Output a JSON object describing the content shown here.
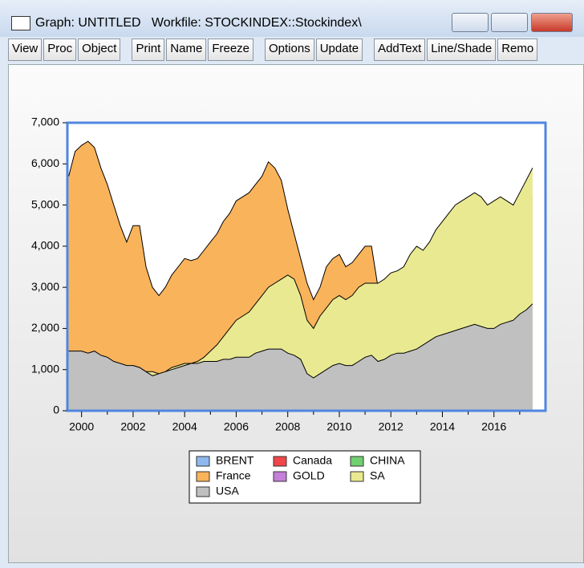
{
  "window": {
    "title": "Graph: UNTITLED   Workfile: STOCKINDEX::Stockindex\\"
  },
  "toolbar": [
    [
      "View",
      "Proc",
      "Object"
    ],
    [
      "Print",
      "Name",
      "Freeze"
    ],
    [
      "Options",
      "Update"
    ],
    [
      "AddText",
      "Line/Shade",
      "Remo"
    ]
  ],
  "chart_data": {
    "type": "area",
    "x": [
      1999.5,
      1999.75,
      2000,
      2000.25,
      2000.5,
      2000.75,
      2001,
      2001.25,
      2001.5,
      2001.75,
      2002,
      2002.25,
      2002.5,
      2002.75,
      2003,
      2003.25,
      2003.5,
      2003.75,
      2004,
      2004.25,
      2004.5,
      2004.75,
      2005,
      2005.25,
      2005.5,
      2005.75,
      2006,
      2006.25,
      2006.5,
      2006.75,
      2007,
      2007.25,
      2007.5,
      2007.75,
      2008,
      2008.25,
      2008.5,
      2008.75,
      2009,
      2009.25,
      2009.5,
      2009.75,
      2010,
      2010.25,
      2010.5,
      2010.75,
      2011,
      2011.25,
      2011.5,
      2011.75,
      2012,
      2012.25,
      2012.5,
      2012.75,
      2013,
      2013.25,
      2013.5,
      2013.75,
      2014,
      2014.25,
      2014.5,
      2014.75,
      2015,
      2015.25,
      2015.5,
      2015.75,
      2016,
      2016.25,
      2016.5,
      2016.75,
      2017,
      2017.25,
      2017.5
    ],
    "series": [
      {
        "name": "BRENT",
        "color": "#8fb8ef",
        "values": [
          null,
          null,
          null,
          null,
          null,
          null,
          null,
          null,
          null,
          null,
          null,
          null,
          null,
          null,
          null,
          null,
          null,
          null,
          null,
          null,
          null,
          null,
          null,
          null,
          null,
          null,
          null,
          null,
          null,
          null,
          null,
          null,
          null,
          null,
          null,
          null,
          null,
          null,
          null,
          null,
          null,
          null,
          null,
          null,
          null,
          null,
          null,
          null,
          null,
          null,
          null,
          null,
          null,
          null,
          null,
          null,
          null,
          null,
          null,
          null,
          null,
          null,
          null,
          null,
          null,
          null,
          null,
          null,
          null,
          null,
          null,
          null,
          null
        ]
      },
      {
        "name": "Canada",
        "color": "#f0474a",
        "values": [
          null,
          null,
          null,
          null,
          null,
          null,
          null,
          null,
          null,
          null,
          null,
          null,
          null,
          null,
          null,
          null,
          null,
          null,
          null,
          null,
          null,
          null,
          null,
          null,
          null,
          null,
          null,
          null,
          null,
          null,
          null,
          null,
          null,
          null,
          null,
          null,
          null,
          null,
          null,
          null,
          null,
          null,
          null,
          null,
          null,
          null,
          null,
          null,
          null,
          null,
          null,
          null,
          null,
          null,
          null,
          null,
          null,
          null,
          null,
          null,
          null,
          null,
          null,
          null,
          null,
          null,
          null,
          null,
          null,
          null,
          null,
          null,
          null
        ]
      },
      {
        "name": "CHINA",
        "color": "#6fd06f",
        "values": [
          null,
          null,
          null,
          null,
          null,
          null,
          null,
          null,
          null,
          null,
          null,
          null,
          null,
          null,
          null,
          null,
          null,
          null,
          null,
          null,
          null,
          null,
          null,
          null,
          null,
          null,
          null,
          null,
          null,
          null,
          null,
          null,
          null,
          null,
          null,
          null,
          null,
          null,
          null,
          null,
          null,
          null,
          null,
          null,
          null,
          null,
          null,
          null,
          null,
          null,
          null,
          null,
          null,
          null,
          null,
          null,
          null,
          null,
          null,
          null,
          null,
          null,
          null,
          null,
          null,
          null,
          null,
          null,
          null,
          null,
          null,
          null,
          null
        ]
      },
      {
        "name": "France",
        "color": "#f9b35b",
        "values": [
          5700,
          6300,
          6450,
          6550,
          6400,
          5900,
          5500,
          5000,
          4500,
          4100,
          4500,
          4500,
          3500,
          3000,
          2800,
          3000,
          3300,
          3500,
          3700,
          3650,
          3700,
          3900,
          4100,
          4300,
          4600,
          4800,
          5100,
          5200,
          5300,
          5500,
          5700,
          6050,
          5900,
          5600,
          4900,
          4300,
          3700,
          3100,
          2700,
          3000,
          3500,
          3700,
          3800,
          3500,
          3600,
          3800,
          4000,
          4000,
          3000,
          3050,
          3200,
          3300,
          3300,
          3500,
          3700,
          3700,
          3900,
          4100,
          4300,
          4300,
          4400,
          4600,
          4800,
          4500,
          4400,
          4400,
          4300,
          4400,
          4500,
          4700,
          5000,
          5100,
          5200
        ]
      },
      {
        "name": "GOLD",
        "color": "#c47fd8",
        "values": [
          null,
          null,
          null,
          null,
          null,
          null,
          null,
          null,
          null,
          null,
          null,
          null,
          null,
          null,
          null,
          null,
          null,
          null,
          null,
          null,
          null,
          null,
          null,
          null,
          null,
          null,
          null,
          null,
          null,
          null,
          null,
          null,
          null,
          null,
          null,
          null,
          null,
          null,
          null,
          null,
          null,
          null,
          null,
          null,
          null,
          null,
          null,
          null,
          null,
          null,
          null,
          null,
          null,
          null,
          null,
          null,
          null,
          null,
          null,
          null,
          null,
          null,
          null,
          null,
          null,
          null,
          null,
          null,
          null,
          null,
          null,
          null,
          null
        ]
      },
      {
        "name": "SA",
        "color": "#e9e991",
        "values": [
          1350,
          1400,
          1350,
          1300,
          1250,
          1200,
          1150,
          1100,
          1050,
          1050,
          1100,
          1050,
          950,
          950,
          900,
          950,
          1050,
          1100,
          1150,
          1150,
          1200,
          1300,
          1450,
          1600,
          1800,
          2000,
          2200,
          2300,
          2400,
          2600,
          2800,
          3000,
          3100,
          3200,
          3300,
          3200,
          2800,
          2200,
          2000,
          2300,
          2500,
          2700,
          2800,
          2700,
          2800,
          3000,
          3100,
          3100,
          3100,
          3200,
          3350,
          3400,
          3500,
          3800,
          4000,
          3900,
          4100,
          4400,
          4600,
          4800,
          5000,
          5100,
          5200,
          5300,
          5200,
          5000,
          5100,
          5200,
          5100,
          5000,
          5300,
          5600,
          5900
        ]
      },
      {
        "name": "USA",
        "color": "#c0c0c0",
        "values": [
          1450,
          1450,
          1450,
          1400,
          1450,
          1350,
          1300,
          1200,
          1150,
          1100,
          1100,
          1050,
          950,
          850,
          900,
          950,
          1000,
          1050,
          1100,
          1150,
          1150,
          1200,
          1200,
          1200,
          1250,
          1250,
          1300,
          1300,
          1300,
          1400,
          1450,
          1500,
          1500,
          1500,
          1400,
          1350,
          1250,
          900,
          800,
          900,
          1000,
          1100,
          1150,
          1100,
          1100,
          1200,
          1300,
          1350,
          1200,
          1250,
          1350,
          1400,
          1400,
          1450,
          1500,
          1600,
          1700,
          1800,
          1850,
          1900,
          1950,
          2000,
          2050,
          2100,
          2050,
          2000,
          2000,
          2100,
          2150,
          2200,
          2350,
          2450,
          2600
        ]
      }
    ],
    "xlim": [
      1999.45,
      2018.0
    ],
    "xticks": [
      2000,
      2002,
      2004,
      2006,
      2008,
      2010,
      2012,
      2014,
      2016
    ],
    "xminor_ticks": [
      2001,
      2003,
      2005,
      2007,
      2009,
      2011,
      2013,
      2015,
      2017
    ],
    "ylim": [
      0,
      7000
    ],
    "yticks": [
      0,
      {
        "value": 1000,
        "label": "1,000"
      },
      {
        "value": 2000,
        "label": "2,000"
      },
      {
        "value": 3000,
        "label": "3,000"
      },
      {
        "value": 4000,
        "label": "4,000"
      },
      {
        "value": 5000,
        "label": "5,000"
      },
      {
        "value": 6000,
        "label": "6,000"
      },
      {
        "value": 7000,
        "label": "7,000"
      }
    ],
    "legend": "bottom"
  }
}
